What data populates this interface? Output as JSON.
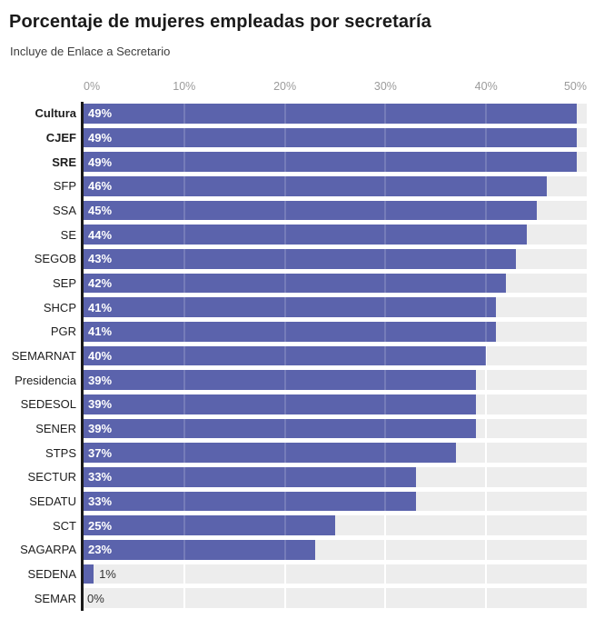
{
  "chart_data": {
    "type": "bar",
    "orientation": "horizontal",
    "title": "Porcentaje de mujeres empleadas por secretaría",
    "subtitle": "Incluye de Enlace a Secretario",
    "x_ticks": [
      "0%",
      "10%",
      "20%",
      "30%",
      "40%",
      "50%"
    ],
    "xlim": [
      0,
      50
    ],
    "grid": true,
    "legend": "none",
    "categories": [
      "Cultura",
      "CJEF",
      "SRE",
      "SFP",
      "SSA",
      "SE",
      "SEGOB",
      "SEP",
      "SHCP",
      "PGR",
      "SEMARNAT",
      "Presidencia",
      "SEDESOL",
      "SENER",
      "STPS",
      "SECTUR",
      "SEDATU",
      "SCT",
      "SAGARPA",
      "SEDENA",
      "SEMAR"
    ],
    "values": [
      49,
      49,
      49,
      46,
      45,
      44,
      43,
      42,
      41,
      41,
      40,
      39,
      39,
      39,
      37,
      33,
      33,
      25,
      23,
      1,
      0
    ],
    "value_labels": [
      "49%",
      "49%",
      "49%",
      "46%",
      "45%",
      "44%",
      "43%",
      "42%",
      "41%",
      "41%",
      "40%",
      "39%",
      "39%",
      "39%",
      "37%",
      "33%",
      "33%",
      "25%",
      "23%",
      "1%",
      "0%"
    ],
    "emphasized_categories": [
      "Cultura",
      "CJEF",
      "SRE"
    ],
    "colors": {
      "bar": "#5b63ac",
      "row_background": "#ededed",
      "axis_line": "#1a1a1a",
      "tick_label": "#9b9b9b",
      "category_label": "#1d1d1d",
      "value_label_inside": "#ffffff",
      "value_label_outside": "#333333",
      "title": "#1a1a1a",
      "subtitle": "#3d3d3d"
    }
  }
}
